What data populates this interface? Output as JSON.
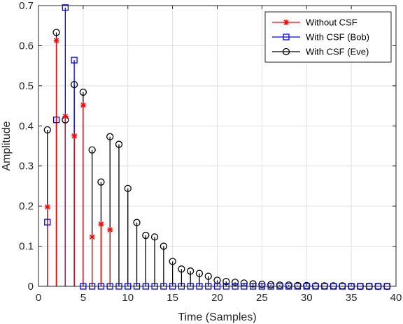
{
  "chart_data": {
    "type": "stem",
    "title": "",
    "xlabel": "Time (Samples)",
    "ylabel": "Amplitude",
    "xlim": [
      0,
      40
    ],
    "ylim": [
      0,
      0.7
    ],
    "xticks": [
      0,
      5,
      10,
      15,
      20,
      25,
      30,
      35,
      40
    ],
    "yticks": [
      0,
      0.1,
      0.2,
      0.3,
      0.4,
      0.5,
      0.6,
      0.7
    ],
    "grid": true,
    "legend_position": "top-right",
    "series": [
      {
        "name": "With CSF (Eve)",
        "color": "#000000",
        "marker": "circle",
        "x": [
          1,
          2,
          3,
          4,
          5,
          6,
          7,
          8,
          9,
          10,
          11,
          12,
          13,
          14,
          15,
          16,
          17,
          18,
          19,
          20,
          21,
          22,
          23,
          24,
          25,
          26,
          27,
          28,
          29,
          30,
          31,
          32,
          33,
          34,
          35,
          36,
          37,
          38,
          39
        ],
        "y": [
          0.39,
          0.633,
          0.415,
          0.503,
          0.484,
          0.34,
          0.26,
          0.373,
          0.354,
          0.244,
          0.159,
          0.127,
          0.123,
          0.1,
          0.062,
          0.043,
          0.038,
          0.032,
          0.025,
          0.015,
          0.012,
          0.01,
          0.008,
          0.006,
          0.005,
          0.004,
          0.003,
          0.003,
          0.002,
          0.002,
          0.001,
          0.001,
          0.001,
          0.001,
          0.0,
          0.0,
          0.0,
          0.0,
          0.0
        ]
      },
      {
        "name": "With CSF (Bob)",
        "color": "#0000ff",
        "marker": "square",
        "x": [
          1,
          2,
          3,
          4,
          5,
          6,
          7,
          8,
          9,
          10,
          11,
          12,
          13,
          14,
          15,
          16,
          17,
          18,
          19,
          20,
          21,
          22,
          23,
          24,
          25,
          26,
          27,
          28,
          29,
          30,
          31,
          32,
          33,
          34,
          35,
          36,
          37,
          38,
          39
        ],
        "y": [
          0.16,
          0.415,
          0.695,
          0.564,
          0,
          0,
          0,
          0,
          0,
          0,
          0,
          0,
          0,
          0,
          0,
          0,
          0,
          0,
          0,
          0,
          0,
          0,
          0,
          0,
          0,
          0,
          0,
          0,
          0,
          0,
          0,
          0,
          0,
          0,
          0,
          0,
          0,
          0,
          0
        ]
      },
      {
        "name": "Without CSF",
        "color": "#ff0000",
        "marker": "asterisk",
        "x": [
          1,
          2,
          3,
          4,
          5,
          6,
          7,
          8
        ],
        "y": [
          0.198,
          0.613,
          0.424,
          0.375,
          0.452,
          0.123,
          0.155,
          0.141
        ]
      }
    ],
    "legend_order": [
      "Without CSF",
      "With CSF (Bob)",
      "With CSF (Eve)"
    ]
  }
}
